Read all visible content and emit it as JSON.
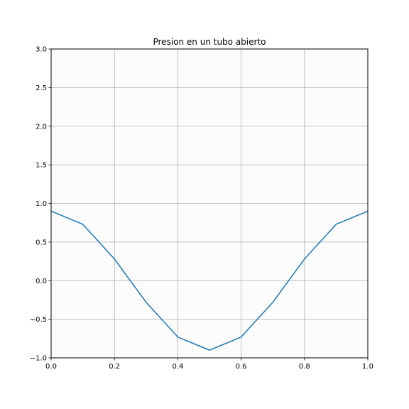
{
  "chart_data": {
    "type": "line",
    "title": "Presion en un tubo abierto",
    "xlabel": "",
    "ylabel": "",
    "xlim": [
      0.0,
      1.0
    ],
    "ylim": [
      -1.0,
      3.0
    ],
    "xticks": [
      0.0,
      0.2,
      0.4,
      0.6,
      0.8,
      1.0
    ],
    "xtick_labels": [
      "0.0",
      "0.2",
      "0.4",
      "0.6",
      "0.8",
      "1.0"
    ],
    "yticks": [
      -1.0,
      -0.5,
      0.0,
      0.5,
      1.0,
      1.5,
      2.0,
      2.5,
      3.0
    ],
    "ytick_labels": [
      "−1.0",
      "−0.5",
      "0.0",
      "0.5",
      "1.0",
      "1.5",
      "2.0",
      "2.5",
      "3.0"
    ],
    "grid": true,
    "background_color": "#fcfcfc",
    "grid_color": "#b0b0b0",
    "series": [
      {
        "color": "#1f77b4",
        "x": [
          0.0,
          0.1,
          0.2,
          0.3,
          0.4,
          0.5,
          0.6,
          0.7,
          0.8,
          0.9,
          1.0
        ],
        "y": [
          0.9,
          0.73,
          0.28,
          -0.28,
          -0.73,
          -0.9,
          -0.73,
          -0.28,
          0.28,
          0.73,
          0.9
        ]
      }
    ]
  }
}
